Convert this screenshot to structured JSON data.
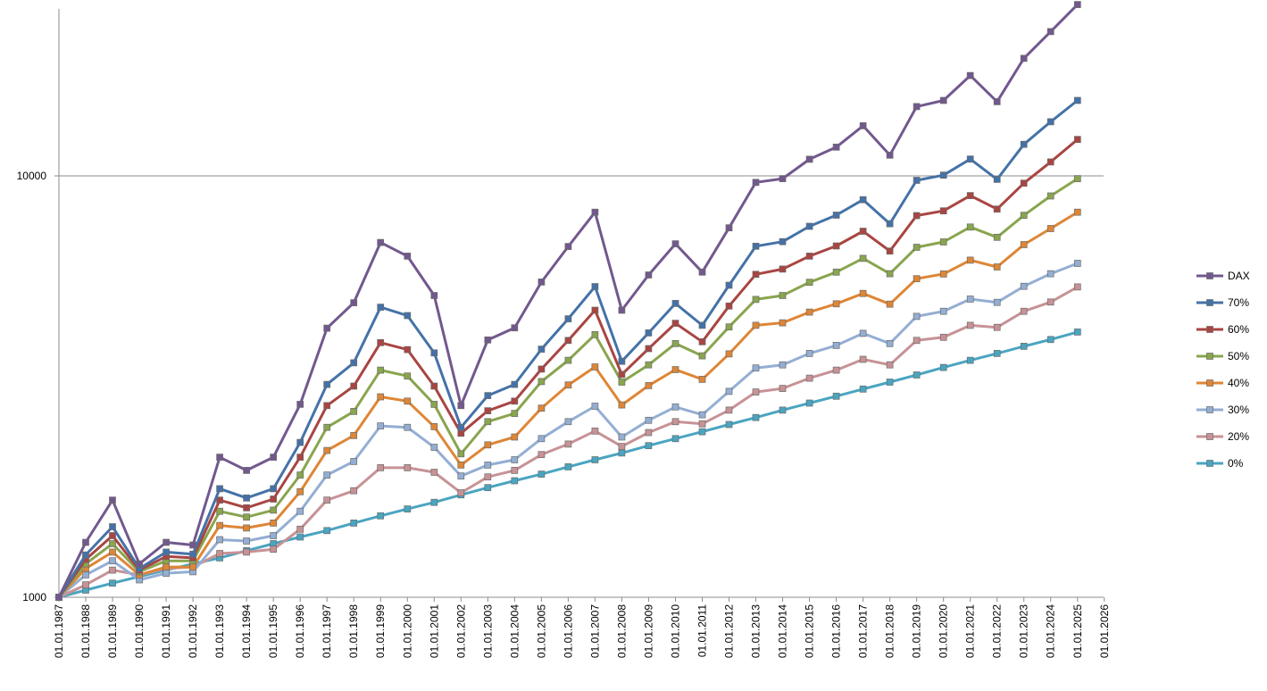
{
  "chart_data": {
    "type": "line",
    "title": "",
    "xlabel": "",
    "ylabel": "",
    "y_scale": "log",
    "ylim": [
      1000,
      25000
    ],
    "y_ticks": [
      1000,
      10000
    ],
    "y_tick_labels": [
      "1000",
      "10000"
    ],
    "grid": "horizontal at 10000",
    "legend_position": "right",
    "x_tick_labels": [
      "01.01.1987",
      "01.01.1988",
      "01.01.1989",
      "01.01.1990",
      "01.01.1991",
      "01.01.1992",
      "01.01.1993",
      "01.01.1994",
      "01.01.1995",
      "01.01.1996",
      "01.01.1997",
      "01.01.1998",
      "01.01.1999",
      "01.01.2000",
      "01.01.2001",
      "01.01.2002",
      "01.01.2003",
      "01.01.2004",
      "01.01.2005",
      "01.01.2006",
      "01.01.2007",
      "01.01.2008",
      "01.01.2009",
      "01.01.2010",
      "01.01.2011",
      "01.01.2012",
      "01.01.2013",
      "01.01.2014",
      "01.01.2015",
      "01.01.2016",
      "01.01.2017",
      "01.01.2018",
      "01.01.2019",
      "01.01.2020",
      "01.01.2021",
      "01.01.2022",
      "01.01.2023",
      "01.01.2024",
      "01.01.2025",
      "01.01.2026"
    ],
    "series": [
      {
        "name": "DAX",
        "color": "#72588e",
        "values": [
          1000,
          1350,
          1700,
          1200,
          1350,
          1330,
          2150,
          2000,
          2150,
          2870,
          4350,
          5000,
          6950,
          6450,
          5200,
          2850,
          4080,
          4360,
          5600,
          6800,
          8200,
          4800,
          5820,
          6900,
          5910,
          7530,
          9650,
          9850,
          10950,
          11700,
          13150,
          11200,
          14600,
          15100,
          17300,
          15000,
          19000,
          22000,
          25500
        ]
      },
      {
        "name": "70%",
        "color": "#4472a8",
        "values": [
          1000,
          1260,
          1470,
          1170,
          1280,
          1265,
          1810,
          1720,
          1810,
          2330,
          3200,
          3600,
          4880,
          4660,
          3800,
          2530,
          3010,
          3200,
          3880,
          4580,
          5460,
          3630,
          4240,
          4980,
          4420,
          5500,
          6810,
          6980,
          7590,
          8070,
          8780,
          7700,
          9760,
          10040,
          10960,
          9810,
          11880,
          13440,
          15100
        ]
      },
      {
        "name": "60%",
        "color": "#a94542",
        "values": [
          1000,
          1230,
          1400,
          1160,
          1250,
          1240,
          1700,
          1630,
          1710,
          2150,
          2850,
          3170,
          4020,
          3870,
          3170,
          2450,
          2770,
          2920,
          3480,
          4070,
          4800,
          3380,
          3890,
          4470,
          4040,
          4910,
          5840,
          6010,
          6450,
          6820,
          7390,
          6630,
          8050,
          8260,
          8980,
          8340,
          9610,
          10790,
          12200
        ]
      },
      {
        "name": "50%",
        "color": "#89a54e",
        "values": [
          1000,
          1200,
          1340,
          1150,
          1220,
          1220,
          1600,
          1550,
          1610,
          1950,
          2530,
          2760,
          3460,
          3350,
          2870,
          2190,
          2610,
          2730,
          3250,
          3650,
          4200,
          3240,
          3560,
          4000,
          3740,
          4380,
          5090,
          5200,
          5590,
          5910,
          6370,
          5860,
          6770,
          6970,
          7560,
          7150,
          8060,
          8960,
          9850
        ]
      },
      {
        "name": "40%",
        "color": "#de8636",
        "values": [
          1000,
          1170,
          1280,
          1130,
          1180,
          1180,
          1480,
          1460,
          1500,
          1780,
          2230,
          2420,
          2990,
          2920,
          2540,
          2060,
          2300,
          2400,
          2810,
          3190,
          3520,
          2860,
          3180,
          3470,
          3290,
          3780,
          4420,
          4480,
          4750,
          4970,
          5260,
          4960,
          5700,
          5850,
          6310,
          6080,
          6870,
          7500,
          8200
        ]
      },
      {
        "name": "30%",
        "color": "#94aed3",
        "values": [
          1000,
          1130,
          1220,
          1100,
          1140,
          1150,
          1370,
          1360,
          1400,
          1600,
          1950,
          2100,
          2550,
          2530,
          2270,
          1940,
          2060,
          2120,
          2380,
          2610,
          2840,
          2400,
          2630,
          2830,
          2710,
          3080,
          3500,
          3560,
          3790,
          3960,
          4230,
          4000,
          4640,
          4770,
          5100,
          5010,
          5470,
          5860,
          6200
        ]
      },
      {
        "name": "20%",
        "color": "#c79296",
        "values": [
          1000,
          1070,
          1160,
          1130,
          1170,
          1180,
          1270,
          1280,
          1300,
          1450,
          1700,
          1790,
          2030,
          2030,
          1980,
          1770,
          1930,
          2000,
          2180,
          2310,
          2480,
          2280,
          2460,
          2610,
          2580,
          2780,
          3070,
          3130,
          3310,
          3460,
          3670,
          3560,
          4070,
          4140,
          4420,
          4370,
          4770,
          5020,
          5450
        ]
      },
      {
        "name": "0%",
        "color": "#4aa5c0",
        "values": [
          1000,
          1040,
          1080,
          1120,
          1160,
          1200,
          1240,
          1290,
          1340,
          1390,
          1440,
          1500,
          1560,
          1620,
          1680,
          1750,
          1820,
          1890,
          1960,
          2040,
          2120,
          2200,
          2290,
          2380,
          2470,
          2570,
          2670,
          2780,
          2890,
          3000,
          3120,
          3240,
          3370,
          3510,
          3650,
          3790,
          3940,
          4090,
          4260
        ]
      }
    ]
  }
}
